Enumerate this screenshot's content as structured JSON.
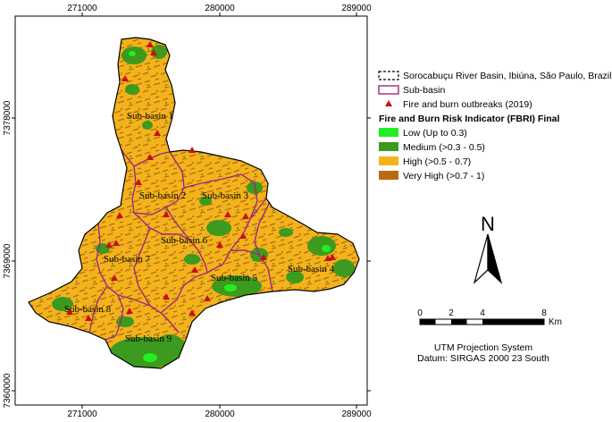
{
  "map": {
    "x_ticks": [
      "271000",
      "280000",
      "289000"
    ],
    "y_ticks": [
      "7378000",
      "7369000",
      "7360000"
    ],
    "subbasin_labels": [
      "Sub-basin 1",
      "Sub-basin 2",
      "Sub-basin 3",
      "Sub-basin 4",
      "Sub-basin 5",
      "Sub-basin 6",
      "Sub-basin 7",
      "Sub-basin 8",
      "Sub-basin 9"
    ],
    "colors": {
      "low": "#22ee22",
      "medium": "#3c9a1e",
      "high": "#f2b31c",
      "very_high": "#b86a10",
      "fire": "#c81010",
      "subbasin_line": "#a0287a"
    }
  },
  "legend": {
    "basin_label": "Sorocabuçu River Basin, Ibiúna, São Paulo, Brazil",
    "subbasin_label": "Sub-basin",
    "fire_label": "Fire and burn outbreaks (2019)",
    "title": "Fire and Burn Risk Indicator (FBRI) Final",
    "classes": [
      {
        "label": "Low (Up to 0.3)",
        "color": "#22ee22"
      },
      {
        "label": "Medium (>0.3 - 0.5)",
        "color": "#3c9a1e"
      },
      {
        "label": "High (>0.5 - 0.7)",
        "color": "#f2b31c"
      },
      {
        "label": "Very High (>0.7 - 1)",
        "color": "#b86a10"
      }
    ]
  },
  "north_arrow": {
    "letter": "N"
  },
  "scale_bar": {
    "labels": [
      "0",
      "2",
      "4",
      "8"
    ],
    "unit": "Km"
  },
  "projection": {
    "line1": "UTM Projection System",
    "line2": "Datum: SIRGAS 2000 23 South"
  }
}
